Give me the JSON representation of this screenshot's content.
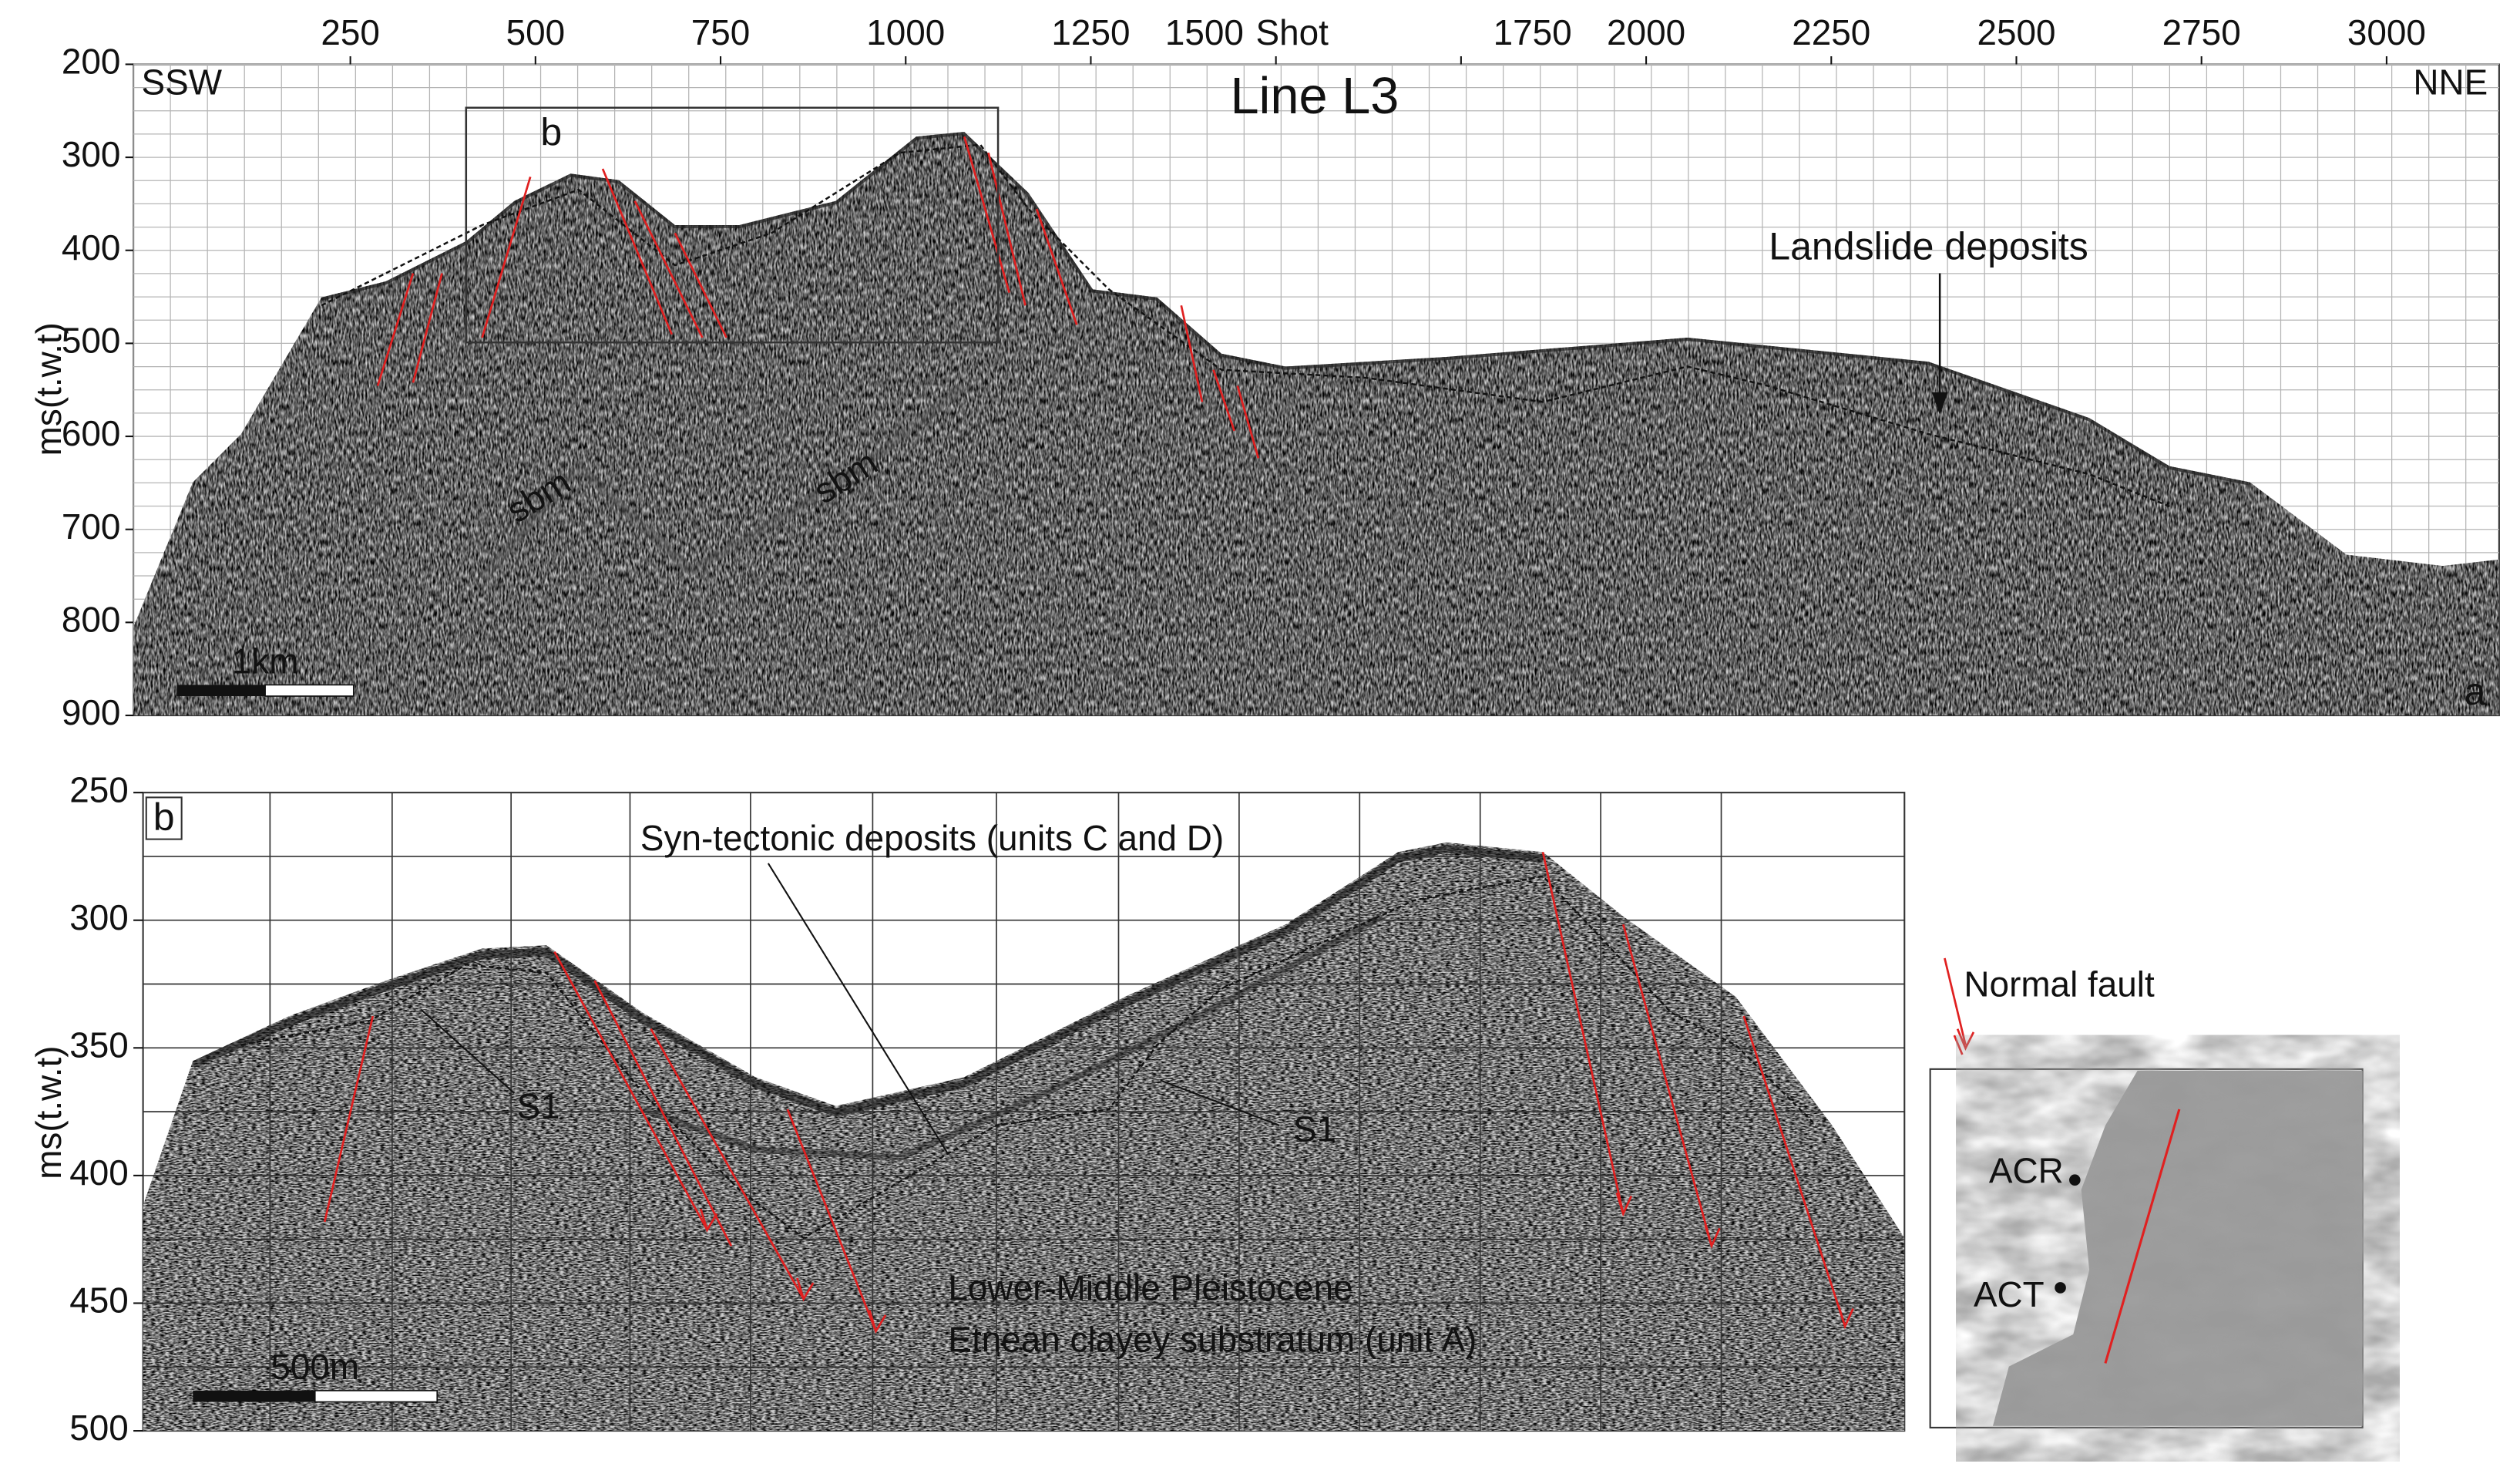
{
  "panel_a": {
    "label": "a",
    "title": "Line L3",
    "left_label": "SSW",
    "right_label": "NNE",
    "y_axis_label": "ms(t.w.t)",
    "x_axis_label": "Shot",
    "yticks": [
      200,
      300,
      400,
      500,
      600,
      700,
      800,
      900
    ],
    "xticks": [
      250,
      500,
      750,
      1000,
      1250,
      1500,
      1750,
      2000,
      2250,
      2500,
      2750,
      3000
    ],
    "box_label": "b",
    "landslide": "Landslide deposits",
    "sbm_left": "sbm",
    "sbm_right": "sbm",
    "scale_bar": "1km"
  },
  "panel_b": {
    "label": "b",
    "y_axis_label": "ms(t.w.t)",
    "yticks": [
      250,
      300,
      350,
      400,
      450,
      500
    ],
    "syn_tectonic": "Syn-tectonic deposits (units C and D)",
    "s1_left": "S1",
    "s1_right": "S1",
    "substratum_line1": "Lower-Middle Pleistocene",
    "substratum_line2": "Etnean clayey substratum (unit A)",
    "scale_bar": "500m"
  },
  "legend": {
    "normal_fault": "Normal fault"
  },
  "inset": {
    "acr": "ACR",
    "act": "ACT"
  }
}
